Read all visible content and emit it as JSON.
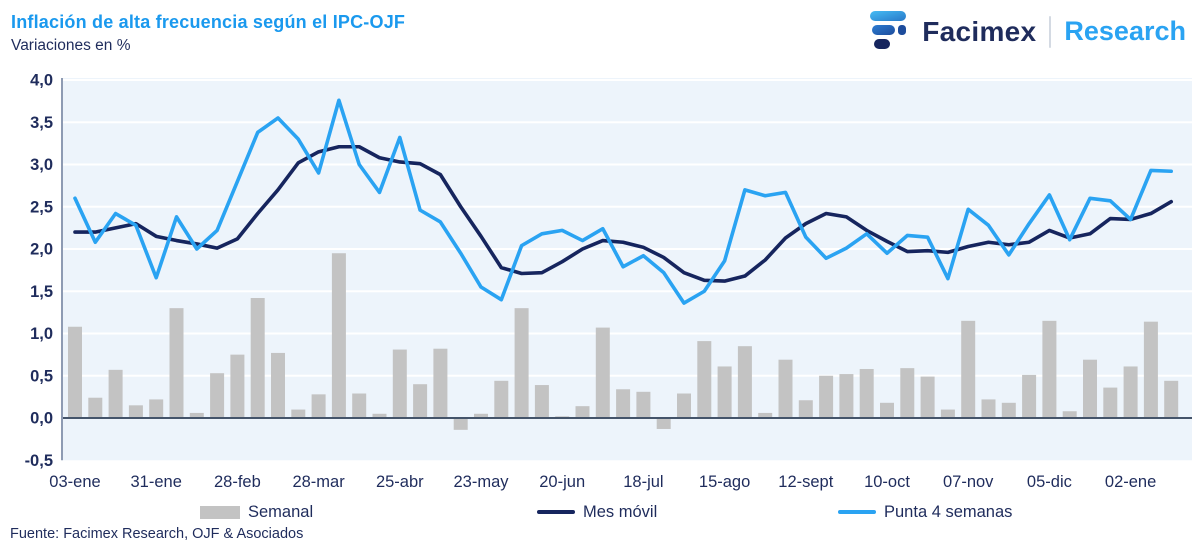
{
  "header": {
    "title": "Inflación de alta frecuencia según el IPC-OJF",
    "subtitle": "Variaciones en %"
  },
  "logo": {
    "brand": "Facimex",
    "research": "Research"
  },
  "footer": {
    "source": "Fuente: Facimex Research, OJF & Asociados"
  },
  "colors": {
    "title_blue": "#1A99EE",
    "navy_text": "#1F2C5C",
    "plot_bg": "#EDF4FB",
    "gridline": "#FFFFFF",
    "zero_line": "#44546A",
    "y_axis_line": "#8E9BB3",
    "bar_gray": "#C3C3C3",
    "line_navy": "#16255E",
    "line_blue": "#2AA3F2"
  },
  "legend": {
    "items": [
      {
        "label": "Semanal",
        "swatch": "bar",
        "color": "#C3C3C3"
      },
      {
        "label": "Mes móvil",
        "swatch": "line",
        "color": "#16255E"
      },
      {
        "label": "Punta 4 semanas",
        "swatch": "line",
        "color": "#2AA3F2"
      }
    ]
  },
  "chart_data": {
    "type": "combo",
    "title": "Inflación de alta frecuencia según el IPC-OJF",
    "subtitle": "Variaciones en %",
    "ylabel": "Variaciones en %",
    "ylim": [
      -0.5,
      4.0
    ],
    "y_gridline_step": 0.5,
    "grid": true,
    "legend_position": "bottom",
    "y_ticks": [
      {
        "v": 4.0,
        "label": "4,0"
      },
      {
        "v": 3.5,
        "label": "3,5"
      },
      {
        "v": 3.0,
        "label": "3,0"
      },
      {
        "v": 2.5,
        "label": "2,5"
      },
      {
        "v": 2.0,
        "label": "2,0"
      },
      {
        "v": 1.5,
        "label": "1,5"
      },
      {
        "v": 1.0,
        "label": "1,0"
      },
      {
        "v": 0.5,
        "label": "0,5"
      },
      {
        "v": 0.0,
        "label": "0,0"
      },
      {
        "v": -0.5,
        "label": "-0,5"
      }
    ],
    "x_tick_labels": [
      "03-ene",
      "31-ene",
      "28-feb",
      "28-mar",
      "25-abr",
      "23-may",
      "20-jun",
      "18-jul",
      "15-ago",
      "12-sept",
      "10-oct",
      "07-nov",
      "05-dic",
      "02-ene"
    ],
    "x_tick_every_n_points": 4,
    "series": [
      {
        "name": "Semanal",
        "type": "bar",
        "color": "#C3C3C3",
        "values": [
          1.08,
          0.24,
          0.57,
          0.15,
          0.22,
          1.3,
          0.06,
          0.53,
          0.75,
          1.42,
          0.77,
          0.1,
          0.28,
          1.95,
          0.29,
          0.05,
          0.81,
          0.4,
          0.82,
          -0.14,
          0.05,
          0.44,
          1.3,
          0.39,
          0.02,
          0.14,
          1.07,
          0.34,
          0.31,
          -0.13,
          0.29,
          0.91,
          0.61,
          0.85,
          0.06,
          0.69,
          0.21,
          0.5,
          0.52,
          0.58,
          0.18,
          0.59,
          0.49,
          0.1,
          1.15,
          0.22,
          0.18,
          0.51,
          1.15,
          0.08,
          0.69,
          0.36,
          0.61,
          1.14,
          0.44
        ]
      },
      {
        "name": "Mes móvil",
        "type": "line",
        "color": "#16255E",
        "values": [
          2.2,
          2.2,
          2.25,
          2.3,
          2.15,
          2.1,
          2.06,
          2.01,
          2.12,
          2.42,
          2.7,
          3.02,
          3.15,
          3.21,
          3.21,
          3.08,
          3.03,
          3.01,
          2.88,
          2.5,
          2.15,
          1.78,
          1.71,
          1.72,
          1.85,
          2.0,
          2.1,
          2.08,
          2.02,
          1.9,
          1.72,
          1.63,
          1.62,
          1.68,
          1.87,
          2.13,
          2.3,
          2.42,
          2.38,
          2.22,
          2.09,
          1.97,
          1.98,
          1.96,
          2.03,
          2.08,
          2.05,
          2.08,
          2.22,
          2.13,
          2.18,
          2.36,
          2.35,
          2.42,
          2.56
        ]
      },
      {
        "name": "Punta 4 semanas",
        "type": "line",
        "color": "#2AA3F2",
        "values": [
          2.6,
          2.08,
          2.42,
          2.28,
          1.66,
          2.38,
          2.0,
          2.22,
          2.8,
          3.38,
          3.55,
          3.3,
          2.9,
          3.76,
          3.0,
          2.67,
          3.32,
          2.46,
          2.32,
          1.95,
          1.55,
          1.4,
          2.04,
          2.18,
          2.22,
          2.1,
          2.24,
          1.79,
          1.92,
          1.72,
          1.36,
          1.5,
          1.86,
          2.7,
          2.63,
          2.67,
          2.14,
          1.89,
          2.01,
          2.18,
          1.95,
          2.16,
          2.14,
          1.65,
          2.47,
          2.28,
          1.93,
          2.3,
          2.64,
          2.11,
          2.6,
          2.57,
          2.35,
          2.93,
          2.92
        ]
      }
    ]
  }
}
